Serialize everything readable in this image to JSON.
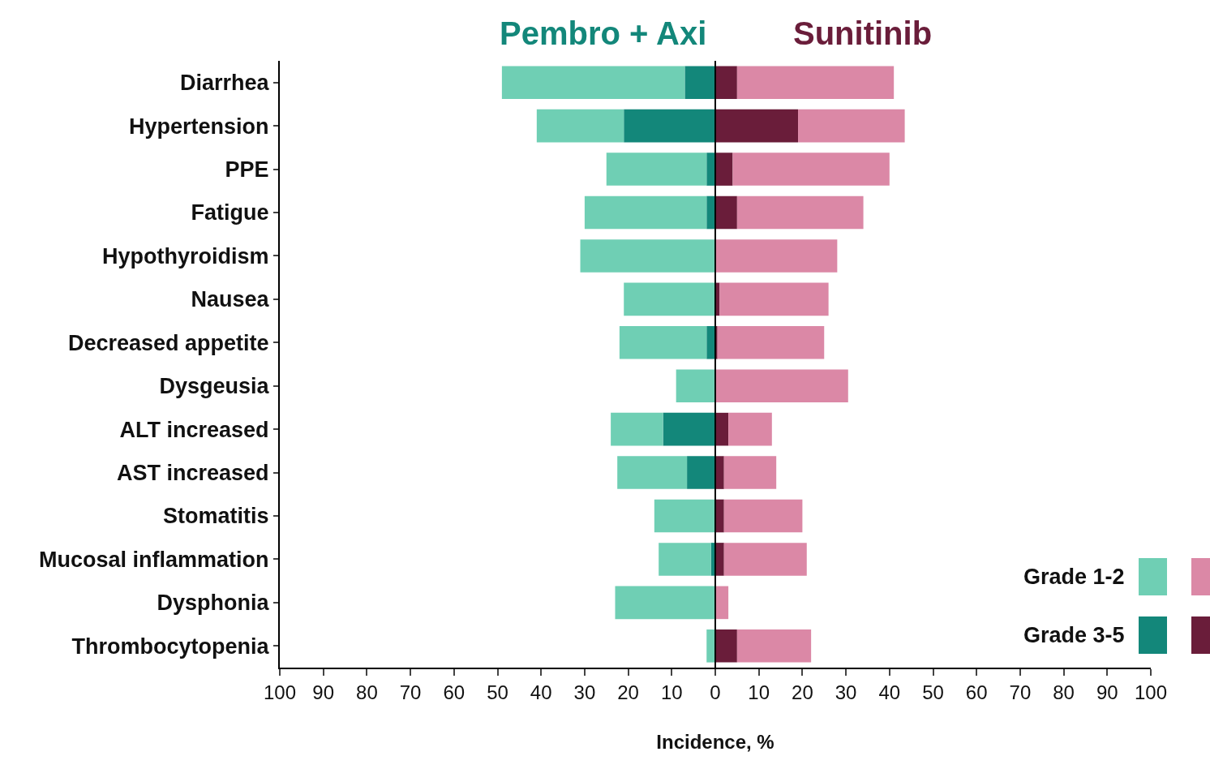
{
  "chart_data": {
    "type": "bar",
    "orientation": "horizontal",
    "stacked": true,
    "xlabel": "Incidence, %",
    "annotations": [
      "Pembro + Axi",
      "Sunitinib"
    ],
    "categories": [
      "Diarrhea",
      "Hypertension",
      "PPE",
      "Fatigue",
      "Hypothyroidism",
      "Nausea",
      "Decreased appetite",
      "Dysgeusia",
      "ALT increased",
      "AST increased",
      "Stomatitis",
      "Mucosal inflammation",
      "Dysphonia",
      "Thrombocytopenia"
    ],
    "series": [
      {
        "name": "Grade 3-5",
        "color": "#13877a",
        "values": [
          -7,
          -21,
          -2,
          -2,
          0,
          0,
          -2,
          0,
          -12,
          -6.5,
          0,
          -1,
          0,
          0
        ]
      },
      {
        "name": "Grade 1-2",
        "color": "#6fcfb4",
        "values": [
          -42,
          -20,
          -23,
          -28,
          -31,
          -21,
          -20,
          -9,
          -12,
          -16,
          -14,
          -12,
          -23,
          -2
        ]
      },
      {
        "color": "#6a1d3a",
        "values": [
          5,
          19,
          4,
          5,
          0,
          1,
          0.5,
          0,
          3,
          2,
          2,
          2,
          0,
          5
        ]
      },
      {
        "color": "#db88a6",
        "values": [
          36,
          24.5,
          36,
          29,
          28,
          25,
          24.5,
          30.5,
          10,
          12,
          18,
          19,
          3,
          17
        ]
      }
    ],
    "xlim": [
      -100,
      100
    ],
    "xticks": [
      {
        "value": -100,
        "label": "100"
      },
      {
        "value": -90,
        "label": "90"
      },
      {
        "value": -80,
        "label": "80"
      },
      {
        "value": -70,
        "label": "70"
      },
      {
        "value": -60,
        "label": "60"
      },
      {
        "value": -50,
        "label": "50"
      },
      {
        "value": -40,
        "label": "40"
      },
      {
        "value": -30,
        "label": "30"
      },
      {
        "value": -20,
        "label": "20"
      },
      {
        "value": -10,
        "label": "10"
      },
      0,
      10,
      20,
      30,
      40,
      50,
      60,
      70,
      80,
      90,
      100
    ],
    "ref_lines": [
      {
        "axis": "x",
        "value": 0,
        "color": "#000000"
      }
    ],
    "grid": false,
    "legend": "bottom right"
  }
}
